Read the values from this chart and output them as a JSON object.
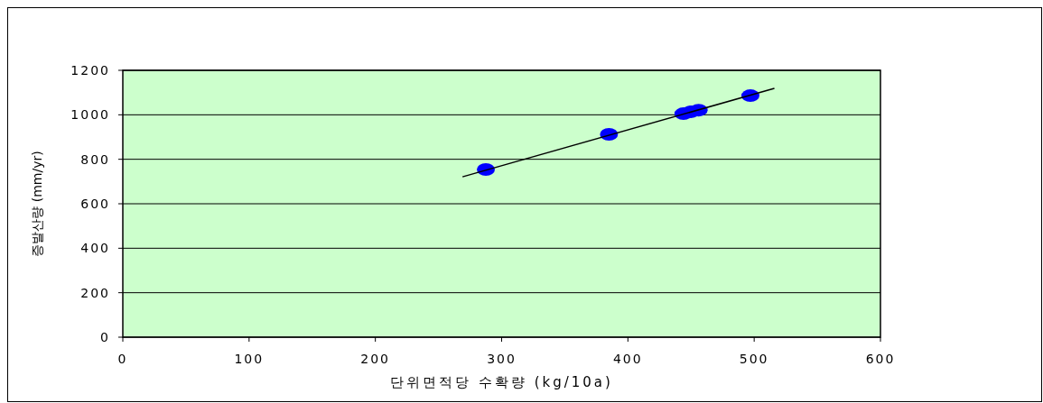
{
  "chart_data": {
    "type": "scatter",
    "xlabel": "단위면적당 수확량 (kg/10a)",
    "ylabel": "증발산량 (mm/yr)",
    "xlim": [
      0,
      600
    ],
    "ylim": [
      0,
      1200
    ],
    "xticks": [
      0,
      100,
      200,
      300,
      400,
      500,
      600
    ],
    "yticks": [
      0,
      200,
      400,
      600,
      800,
      1000,
      1200
    ],
    "grid": "y",
    "series": [
      {
        "marker": "circle",
        "color": "#0000ff",
        "x": [
          287.5,
          385,
          444,
          450,
          456,
          497
        ],
        "values": [
          754,
          912,
          1005,
          1014,
          1021,
          1086
        ]
      },
      {
        "type": "line",
        "color": "#000000",
        "x": [
          269,
          516
        ],
        "values": [
          721,
          1119
        ]
      }
    ]
  }
}
